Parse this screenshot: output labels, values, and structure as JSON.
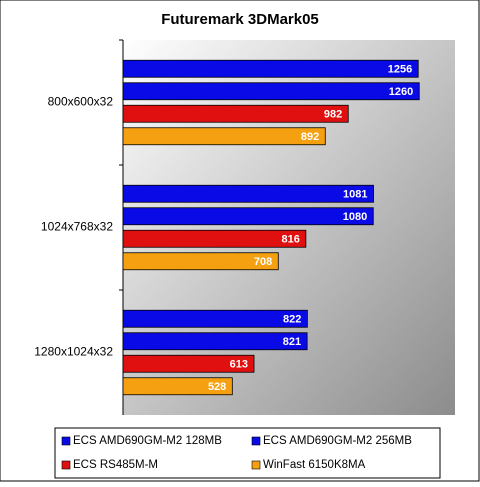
{
  "chart_data": {
    "type": "bar",
    "orientation": "horizontal",
    "title": "Futuremark 3DMark05",
    "categories": [
      "800x600x32",
      "1024x768x32",
      "1280x1024x32"
    ],
    "series": [
      {
        "name": "ECS AMD690GM-M2 128MB",
        "color": "#0a0ae6",
        "values": [
          1256,
          1081,
          822
        ]
      },
      {
        "name": "ECS AMD690GM-M2 256MB",
        "color": "#0a0ae6",
        "values": [
          1260,
          1080,
          821
        ]
      },
      {
        "name": "ECS RS485M-M",
        "color": "#e01010",
        "values": [
          982,
          816,
          613
        ]
      },
      {
        "name": "WinFast 6150K8MA",
        "color": "#f5a010",
        "values": [
          892,
          708,
          528
        ]
      }
    ],
    "xlim": [
      100,
      1400
    ],
    "grid": false,
    "legend": "bottom"
  }
}
